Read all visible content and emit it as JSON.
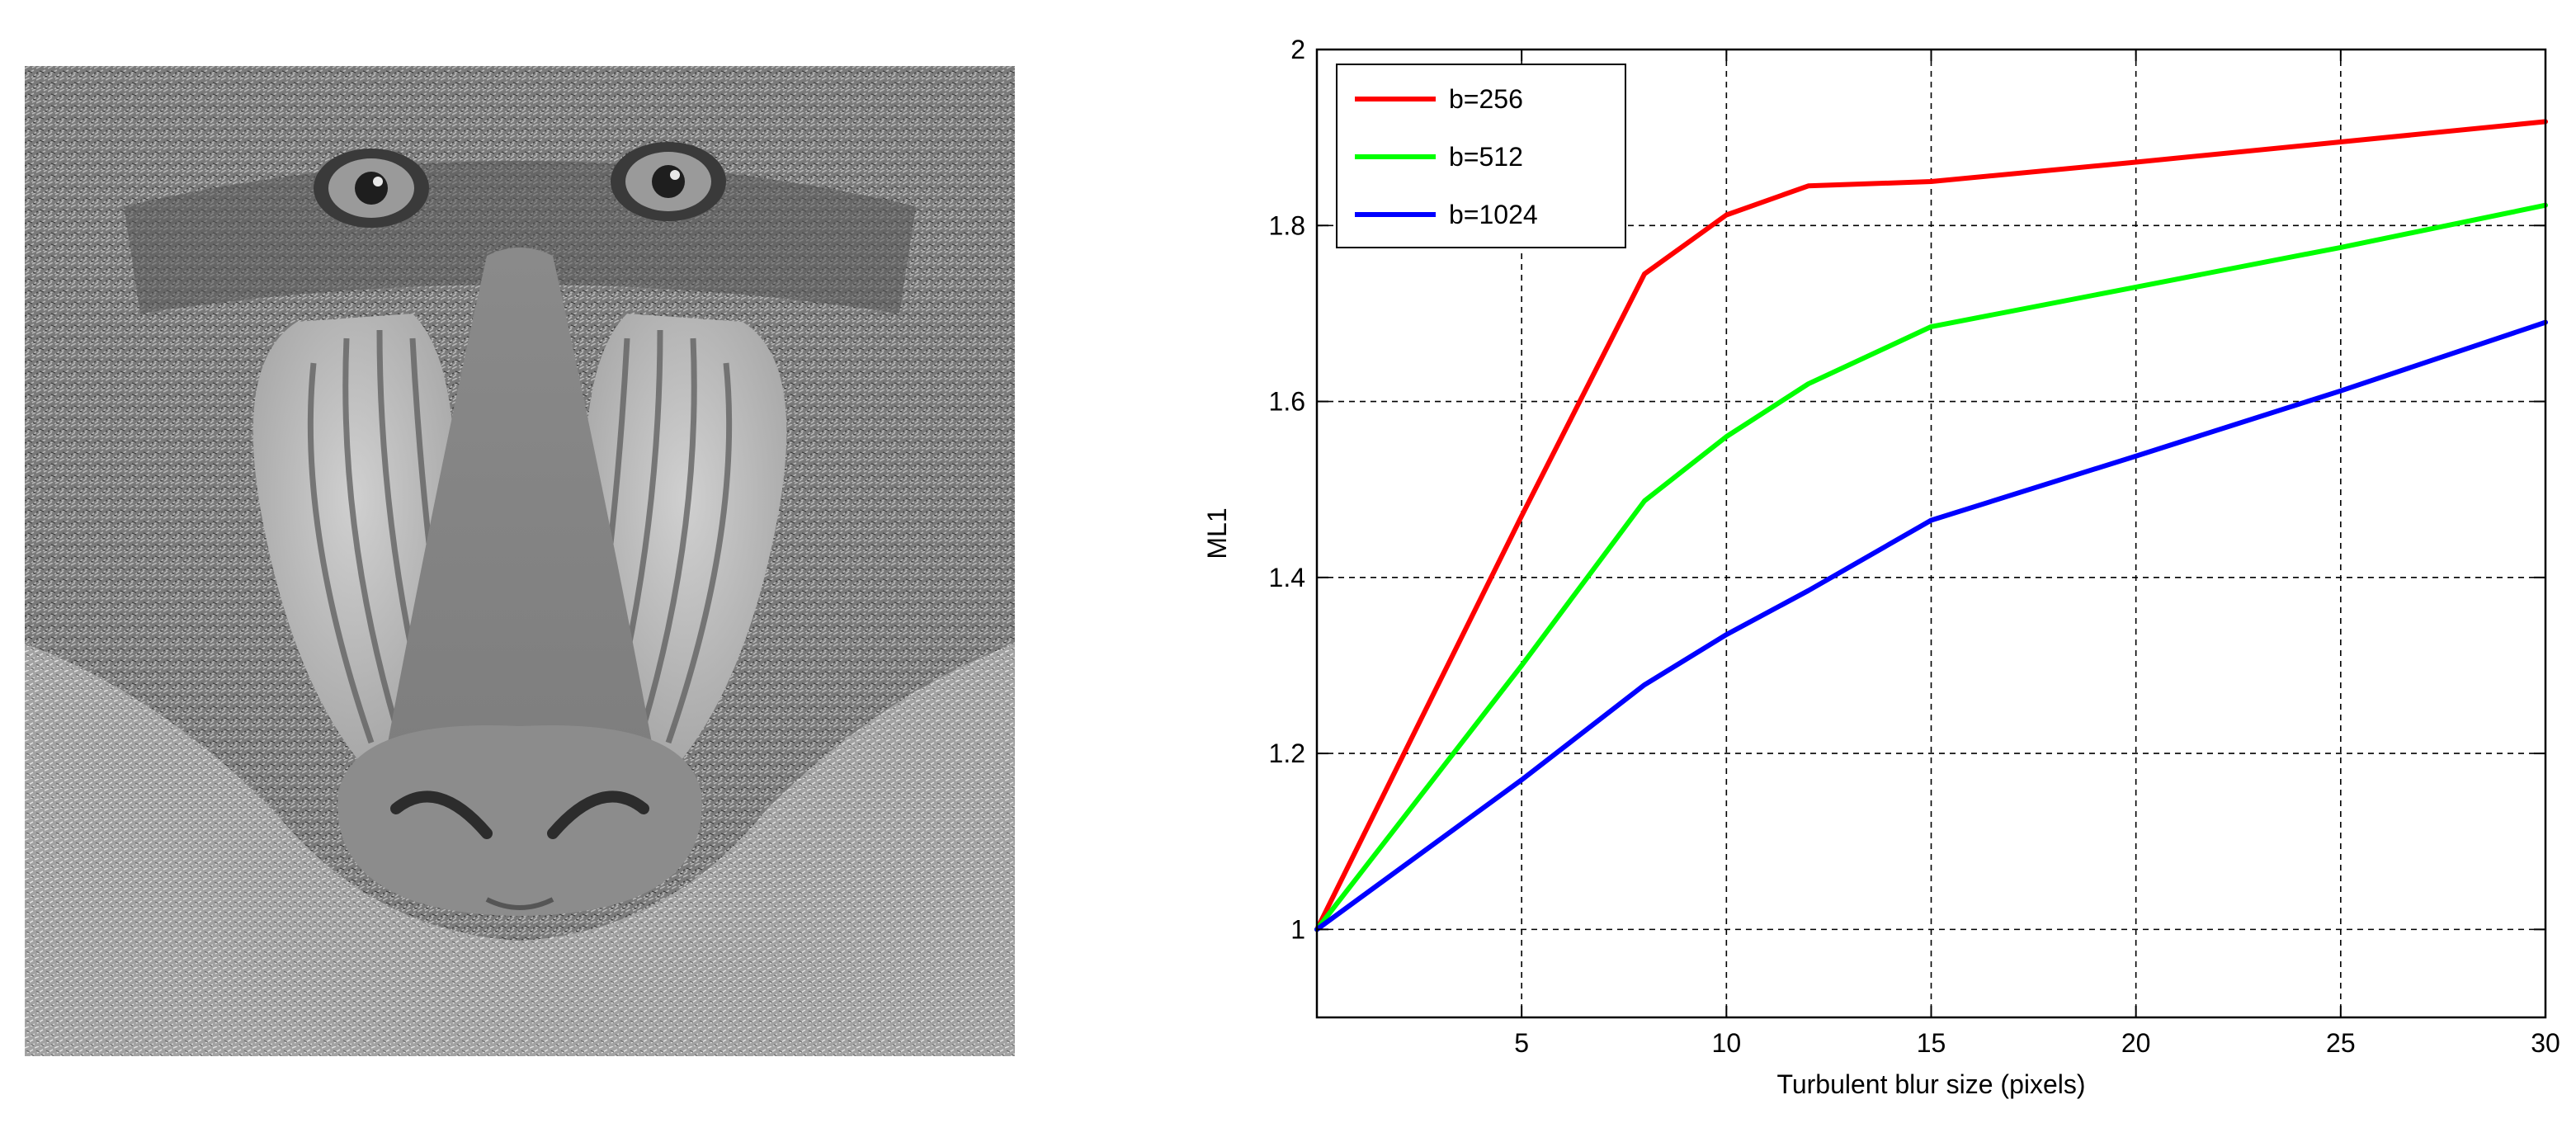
{
  "photo": {
    "subject": "mandrill face grayscale"
  },
  "chart_data": {
    "type": "line",
    "title": "",
    "xlabel": "Turbulent blur size (pixels)",
    "ylabel": "ML1",
    "xlim": [
      0,
      30
    ],
    "ylim": [
      0.9,
      2.0
    ],
    "x_ticks": [
      5,
      10,
      15,
      20,
      25,
      30
    ],
    "x_tick_labels": [
      "5",
      "10",
      "15",
      "20",
      "25",
      "30"
    ],
    "y_ticks": [
      1.0,
      1.2,
      1.4,
      1.6,
      1.8,
      2.0
    ],
    "y_tick_labels": [
      "1",
      "1.2",
      "1.4",
      "1.6",
      "1.8",
      "2"
    ],
    "grid": true,
    "legend_position": "top-left",
    "series": [
      {
        "name": "b=256",
        "color": "#ff0000",
        "x": [
          0,
          5,
          8,
          10,
          12,
          15,
          20,
          25,
          30
        ],
        "y": [
          1.0,
          1.47,
          1.745,
          1.812,
          1.845,
          1.85,
          1.872,
          1.895,
          1.918
        ]
      },
      {
        "name": "b=512",
        "color": "#00ff00",
        "x": [
          0,
          5,
          8,
          10,
          12,
          15,
          20,
          25,
          30
        ],
        "y": [
          1.0,
          1.3,
          1.487,
          1.56,
          1.62,
          1.685,
          1.73,
          1.775,
          1.823
        ]
      },
      {
        "name": "b=1024",
        "color": "#0000ff",
        "x": [
          0,
          5,
          8,
          10,
          12,
          15,
          20,
          25,
          30
        ],
        "y": [
          1.0,
          1.17,
          1.278,
          1.335,
          1.385,
          1.465,
          1.538,
          1.612,
          1.69
        ]
      }
    ]
  }
}
